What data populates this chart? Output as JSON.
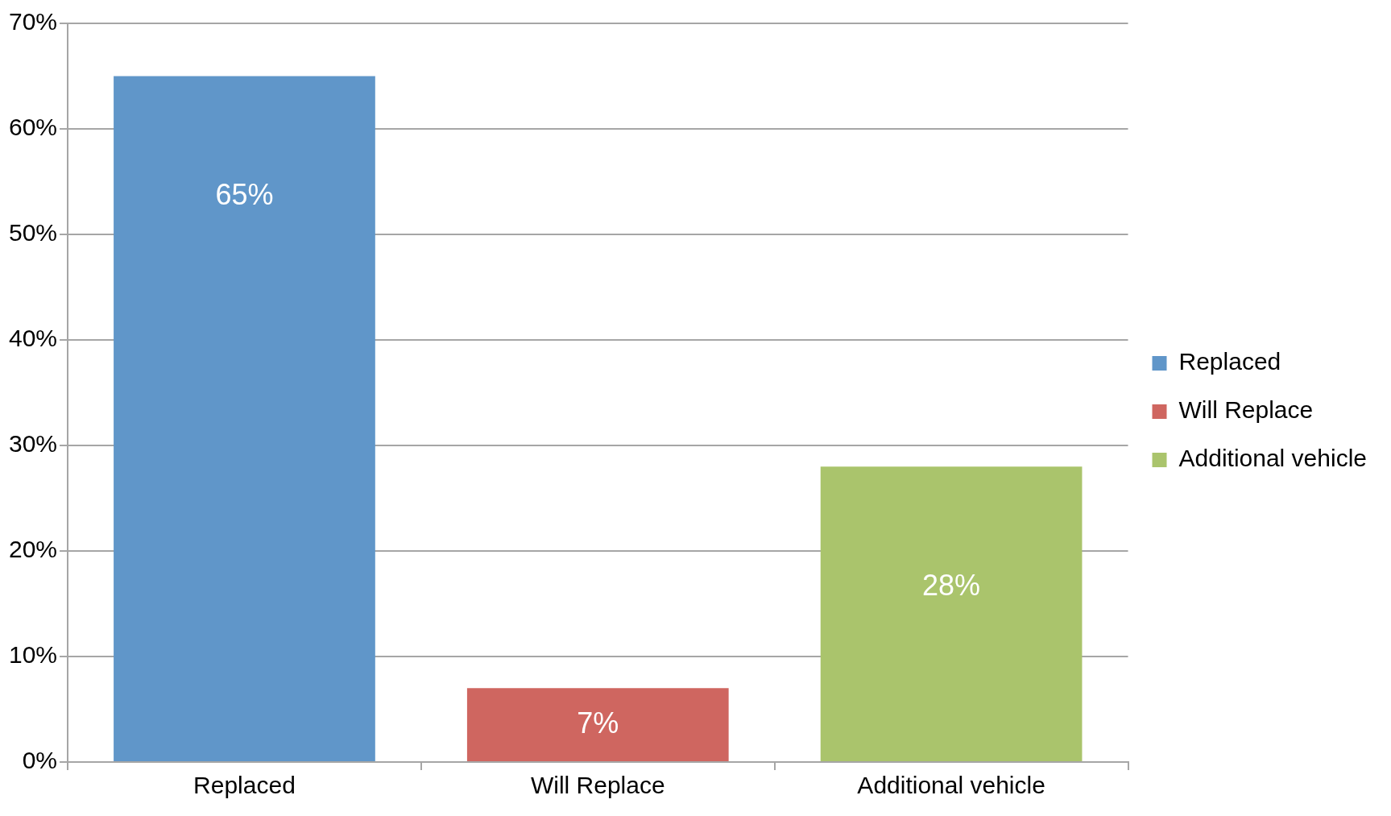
{
  "chart_data": {
    "type": "bar",
    "categories": [
      "Replaced",
      "Will Replace",
      "Additional vehicle"
    ],
    "series": [
      {
        "name": "Replaced",
        "color": "#6096c9",
        "values": [
          65,
          null,
          null
        ],
        "value_labels": [
          "65%",
          null,
          null
        ]
      },
      {
        "name": "Will Replace",
        "color": "#cf6660",
        "values": [
          null,
          7,
          null
        ],
        "value_labels": [
          null,
          "7%",
          null
        ]
      },
      {
        "name": "Additional vehicle",
        "color": "#aac46c",
        "values": [
          null,
          null,
          28
        ],
        "value_labels": [
          null,
          null,
          "28%"
        ]
      }
    ],
    "ylim": [
      0,
      70
    ],
    "yticks": [
      {
        "value": 0,
        "label": "0%"
      },
      {
        "value": 10,
        "label": "10%"
      },
      {
        "value": 20,
        "label": "20%"
      },
      {
        "value": 30,
        "label": "30%"
      },
      {
        "value": 40,
        "label": "40%"
      },
      {
        "value": 50,
        "label": "50%"
      },
      {
        "value": 60,
        "label": "60%"
      },
      {
        "value": 70,
        "label": "70%"
      }
    ],
    "grid": "y",
    "legend": "right"
  }
}
